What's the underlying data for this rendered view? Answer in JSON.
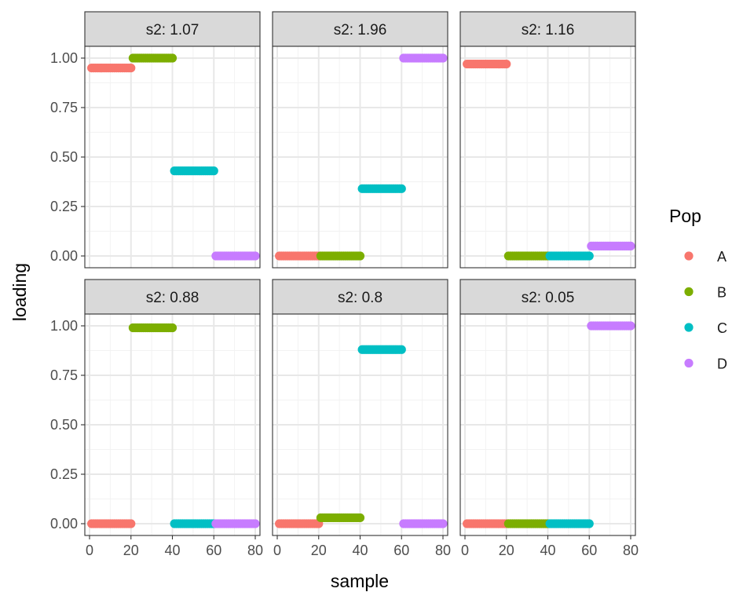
{
  "chart_data": {
    "type": "scatter",
    "facet_layout": "2 rows x 3 columns, shared axes",
    "xlabel": "sample",
    "ylabel": "loading",
    "xlim": [
      0,
      80
    ],
    "ylim": [
      0,
      1
    ],
    "x_ticks": [
      "0",
      "20",
      "40",
      "60",
      "80"
    ],
    "y_ticks": [
      "0.00",
      "0.25",
      "0.50",
      "0.75",
      "1.00"
    ],
    "grid": true,
    "legend": {
      "title": "Pop",
      "placement": "right",
      "entries": [
        {
          "label": "A",
          "color": "#F8766D",
          "x_range": [
            1,
            20
          ]
        },
        {
          "label": "B",
          "color": "#7CAE00",
          "x_range": [
            21,
            40
          ]
        },
        {
          "label": "C",
          "color": "#00BFC4",
          "x_range": [
            41,
            60
          ]
        },
        {
          "label": "D",
          "color": "#C77CFF",
          "x_range": [
            61,
            80
          ]
        }
      ]
    },
    "facets": [
      {
        "label": "s2: 1.07",
        "values": {
          "A": 0.95,
          "B": 1.0,
          "C": 0.43,
          "D": 0.0
        }
      },
      {
        "label": "s2: 1.96",
        "values": {
          "A": 0.0,
          "B": 0.0,
          "C": 0.34,
          "D": 1.0
        }
      },
      {
        "label": "s2: 1.16",
        "values": {
          "A": 0.97,
          "B": 0.0,
          "C": 0.0,
          "D": 0.05
        }
      },
      {
        "label": "s2: 0.88",
        "values": {
          "A": 0.0,
          "B": 0.99,
          "C": 0.0,
          "D": 0.0
        }
      },
      {
        "label": "s2: 0.8",
        "values": {
          "A": 0.0,
          "B": 0.03,
          "C": 0.88,
          "D": 0.0
        }
      },
      {
        "label": "s2: 0.05",
        "values": {
          "A": 0.0,
          "B": 0.0,
          "C": 0.0,
          "D": 1.0
        }
      }
    ]
  }
}
